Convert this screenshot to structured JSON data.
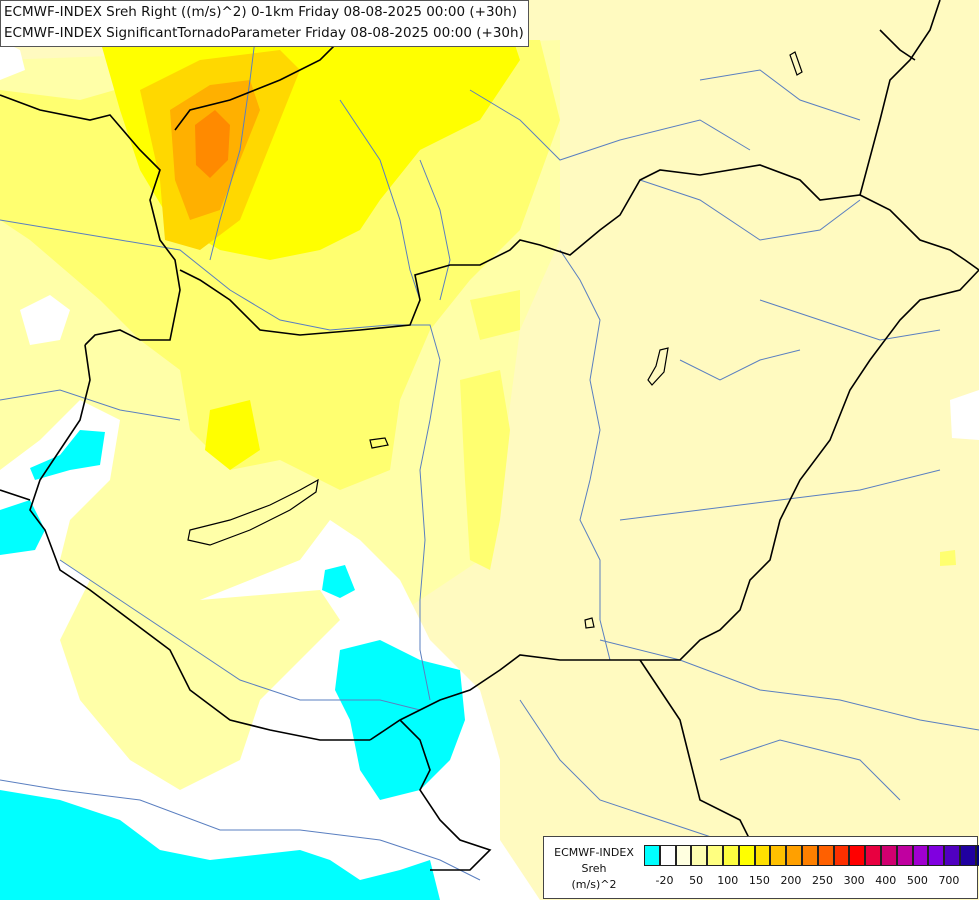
{
  "titles": {
    "line1": "ECMWF-INDEX Sreh Right ((m/s)^2) 0-1km Friday 08-08-2025 00:00 (+30h)",
    "line2": "ECMWF-INDEX SignificantTornadoParameter Friday 08-08-2025 00:00 (+30h)"
  },
  "legend": {
    "line1": "ECMWF-INDEX",
    "line2": "Sreh",
    "line3": "(m/s)^2",
    "colors": [
      "#00ffff",
      "#ffffff",
      "#ffffe0",
      "#ffffb0",
      "#ffff80",
      "#ffff40",
      "#ffff00",
      "#ffe000",
      "#ffc000",
      "#ffa000",
      "#ff8000",
      "#ff6000",
      "#ff3000",
      "#ff0000",
      "#e80040",
      "#d00070",
      "#c000a0",
      "#a000d0",
      "#8000e0",
      "#5000c0",
      "#2000a0",
      "#000080"
    ],
    "ticks": [
      "-20",
      "50",
      "100",
      "150",
      "200",
      "250",
      "300",
      "400",
      "500",
      "700"
    ]
  },
  "map_colors": {
    "background": "#fffac0",
    "cyan": "#00ffff",
    "white": "#ffffff",
    "light_yellow": "#ffffa8",
    "yellow": "#ffff70",
    "bright_yellow": "#ffff00",
    "gold": "#ffd800",
    "orange": "#ffb000",
    "dark_orange": "#ff8a00",
    "border": "#000000",
    "river": "#5a7fc0"
  }
}
